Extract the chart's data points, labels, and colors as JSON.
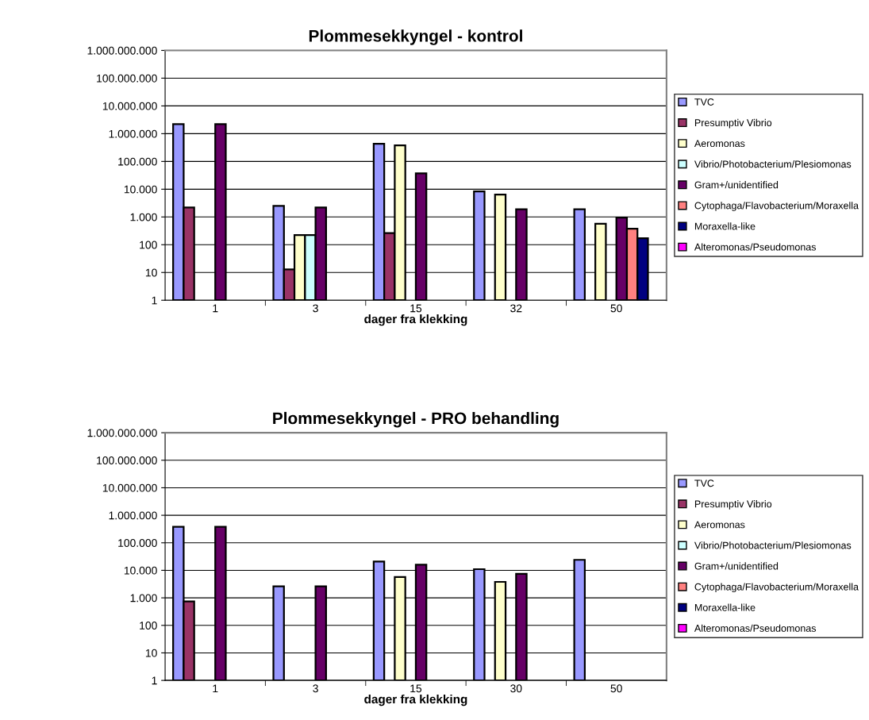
{
  "chart_data": [
    {
      "type": "bar",
      "title": "Plommesekkyngel - kontrol",
      "xlabel": "dager fra klekking",
      "categories": [
        "1",
        "3",
        "15",
        "32",
        "50"
      ],
      "log": true,
      "ylim": [
        1,
        1000000000
      ],
      "yticks": [
        1,
        10,
        100,
        {
          "value": 1000,
          "label": "1.000"
        },
        {
          "value": 10000,
          "label": "10.000"
        },
        {
          "value": 100000,
          "label": "100.000"
        },
        {
          "value": 1000000,
          "label": "1.000.000"
        },
        {
          "value": 10000000,
          "label": "10.000.000"
        },
        {
          "value": 100000000,
          "label": "100.000.000"
        },
        {
          "value": 1000000000,
          "label": "1.000.000.000"
        }
      ],
      "grid": "y",
      "legend": "right",
      "series": [
        {
          "name": "TVC",
          "color": "#9999ff",
          "values": [
            2200000,
            2500,
            430000,
            8300,
            1900
          ]
        },
        {
          "name": "Presumptiv Vibrio",
          "color": "#993366",
          "values": [
            2200,
            12,
            260,
            null,
            null
          ]
        },
        {
          "name": "Aeromonas",
          "color": "#ffffcc",
          "values": [
            null,
            220,
            380000,
            6400,
            570
          ]
        },
        {
          "name": "Vibrio/Photobacterium/Plesiomonas",
          "color": "#ccffff",
          "values": [
            null,
            220,
            null,
            null,
            null
          ]
        },
        {
          "name": "Gram+/unidentified",
          "color": "#660066",
          "values": [
            2200000,
            2200,
            37000,
            1900,
            950
          ]
        },
        {
          "name": "Cytophaga/Flavobacterium/Moraxella",
          "color": "#ff8080",
          "values": [
            null,
            null,
            null,
            null,
            375
          ]
        },
        {
          "name": "Moraxella-like",
          "color": "#000080",
          "values": [
            null,
            null,
            null,
            null,
            170
          ]
        },
        {
          "name": "Alteromonas/Pseudomonas",
          "color": "#ff00ff",
          "values": [
            null,
            null,
            null,
            null,
            null
          ]
        }
      ]
    },
    {
      "type": "bar",
      "title": "Plommesekkyngel - PRO behandling",
      "xlabel": "dager fra klekking",
      "categories": [
        "1",
        "3",
        "15",
        "30",
        "50"
      ],
      "log": true,
      "ylim": [
        1,
        1000000000
      ],
      "yticks": [
        1,
        10,
        100,
        {
          "value": 1000,
          "label": "1.000"
        },
        {
          "value": 10000,
          "label": "10.000"
        },
        {
          "value": 100000,
          "label": "100.000"
        },
        {
          "value": 1000000,
          "label": "1.000.000"
        },
        {
          "value": 10000000,
          "label": "10.000.000"
        },
        {
          "value": 100000000,
          "label": "100.000.000"
        },
        {
          "value": 1000000000,
          "label": "1.000.000.000"
        }
      ],
      "grid": "y",
      "legend": "right",
      "series": [
        {
          "name": "TVC",
          "color": "#9999ff",
          "values": [
            380000,
            2600,
            21000,
            11000,
            24000
          ]
        },
        {
          "name": "Presumptiv Vibrio",
          "color": "#993366",
          "values": [
            740,
            null,
            null,
            null,
            null
          ]
        },
        {
          "name": "Aeromonas",
          "color": "#ffffcc",
          "values": [
            null,
            null,
            5700,
            3800,
            null
          ]
        },
        {
          "name": "Vibrio/Photobacterium/Plesiomonas",
          "color": "#ccffff",
          "values": [
            null,
            null,
            null,
            null,
            null
          ]
        },
        {
          "name": "Gram+/unidentified",
          "color": "#660066",
          "values": [
            380000,
            2600,
            16000,
            7400,
            null
          ]
        },
        {
          "name": "Cytophaga/Flavobacterium/Moraxella",
          "color": "#ff8080",
          "values": [
            null,
            null,
            null,
            null,
            null
          ]
        },
        {
          "name": "Moraxella-like",
          "color": "#000080",
          "values": [
            null,
            null,
            null,
            null,
            null
          ]
        },
        {
          "name": "Alteromonas/Pseudomonas",
          "color": "#ff00ff",
          "values": [
            null,
            null,
            null,
            null,
            null
          ]
        }
      ]
    }
  ]
}
